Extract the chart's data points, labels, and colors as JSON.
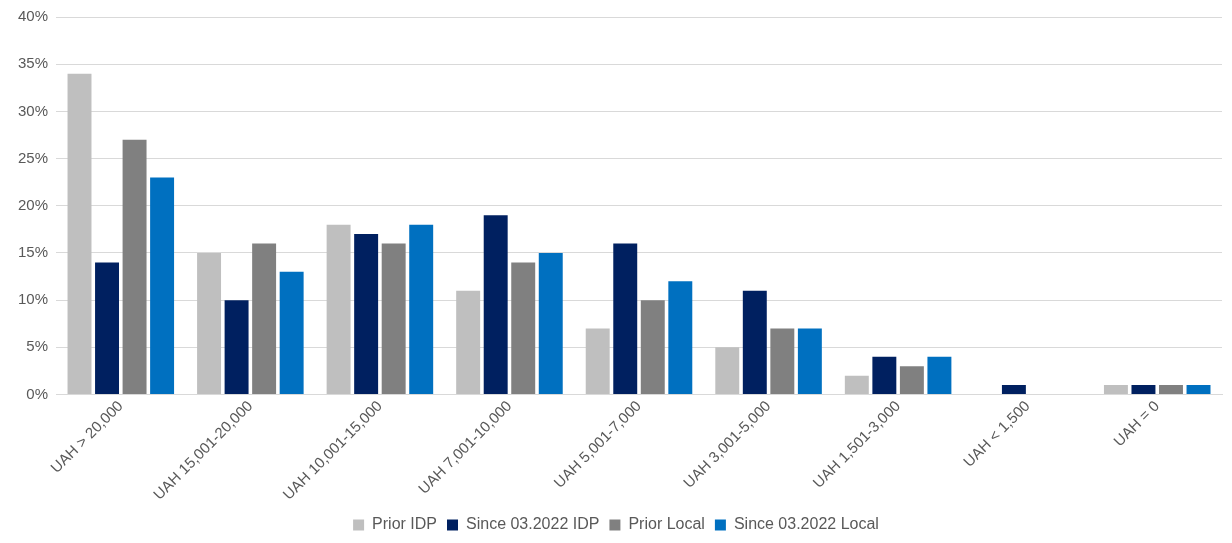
{
  "chart_data": {
    "type": "bar",
    "categories": [
      "UAH > 20,000",
      "UAH 15,001-20,000",
      "UAH 10,001-15,000",
      "UAH 7,001-10,000",
      "UAH 5,001-7,000",
      "UAH 3,001-5,000",
      "UAH 1,501-3,000",
      "UAH < 1,500",
      "UAH = 0"
    ],
    "series": [
      {
        "name": "Prior IDP",
        "color": "#bfbfbf",
        "values": [
          34,
          15,
          18,
          11,
          7,
          5,
          2,
          0,
          1
        ]
      },
      {
        "name": "Since 03.2022 IDP",
        "color": "#002060",
        "values": [
          14,
          10,
          17,
          19,
          16,
          11,
          4,
          1,
          1
        ]
      },
      {
        "name": "Prior Local",
        "color": "#808080",
        "values": [
          27,
          16,
          16,
          14,
          10,
          7,
          3,
          0,
          1
        ]
      },
      {
        "name": "Since 03.2022 Local",
        "color": "#0070c0",
        "values": [
          23,
          13,
          18,
          15,
          12,
          7,
          4,
          0,
          1
        ]
      }
    ],
    "ylim": [
      0,
      40
    ],
    "yticks": [
      {
        "value": 0,
        "label": "0%"
      },
      {
        "value": 5,
        "label": "5%"
      },
      {
        "value": 10,
        "label": "10%"
      },
      {
        "value": 15,
        "label": "15%"
      },
      {
        "value": 20,
        "label": "20%"
      },
      {
        "value": 25,
        "label": "25%"
      },
      {
        "value": 30,
        "label": "30%"
      },
      {
        "value": 35,
        "label": "35%"
      },
      {
        "value": 40,
        "label": "40%"
      }
    ],
    "grid": "y",
    "legend": "bottom"
  }
}
